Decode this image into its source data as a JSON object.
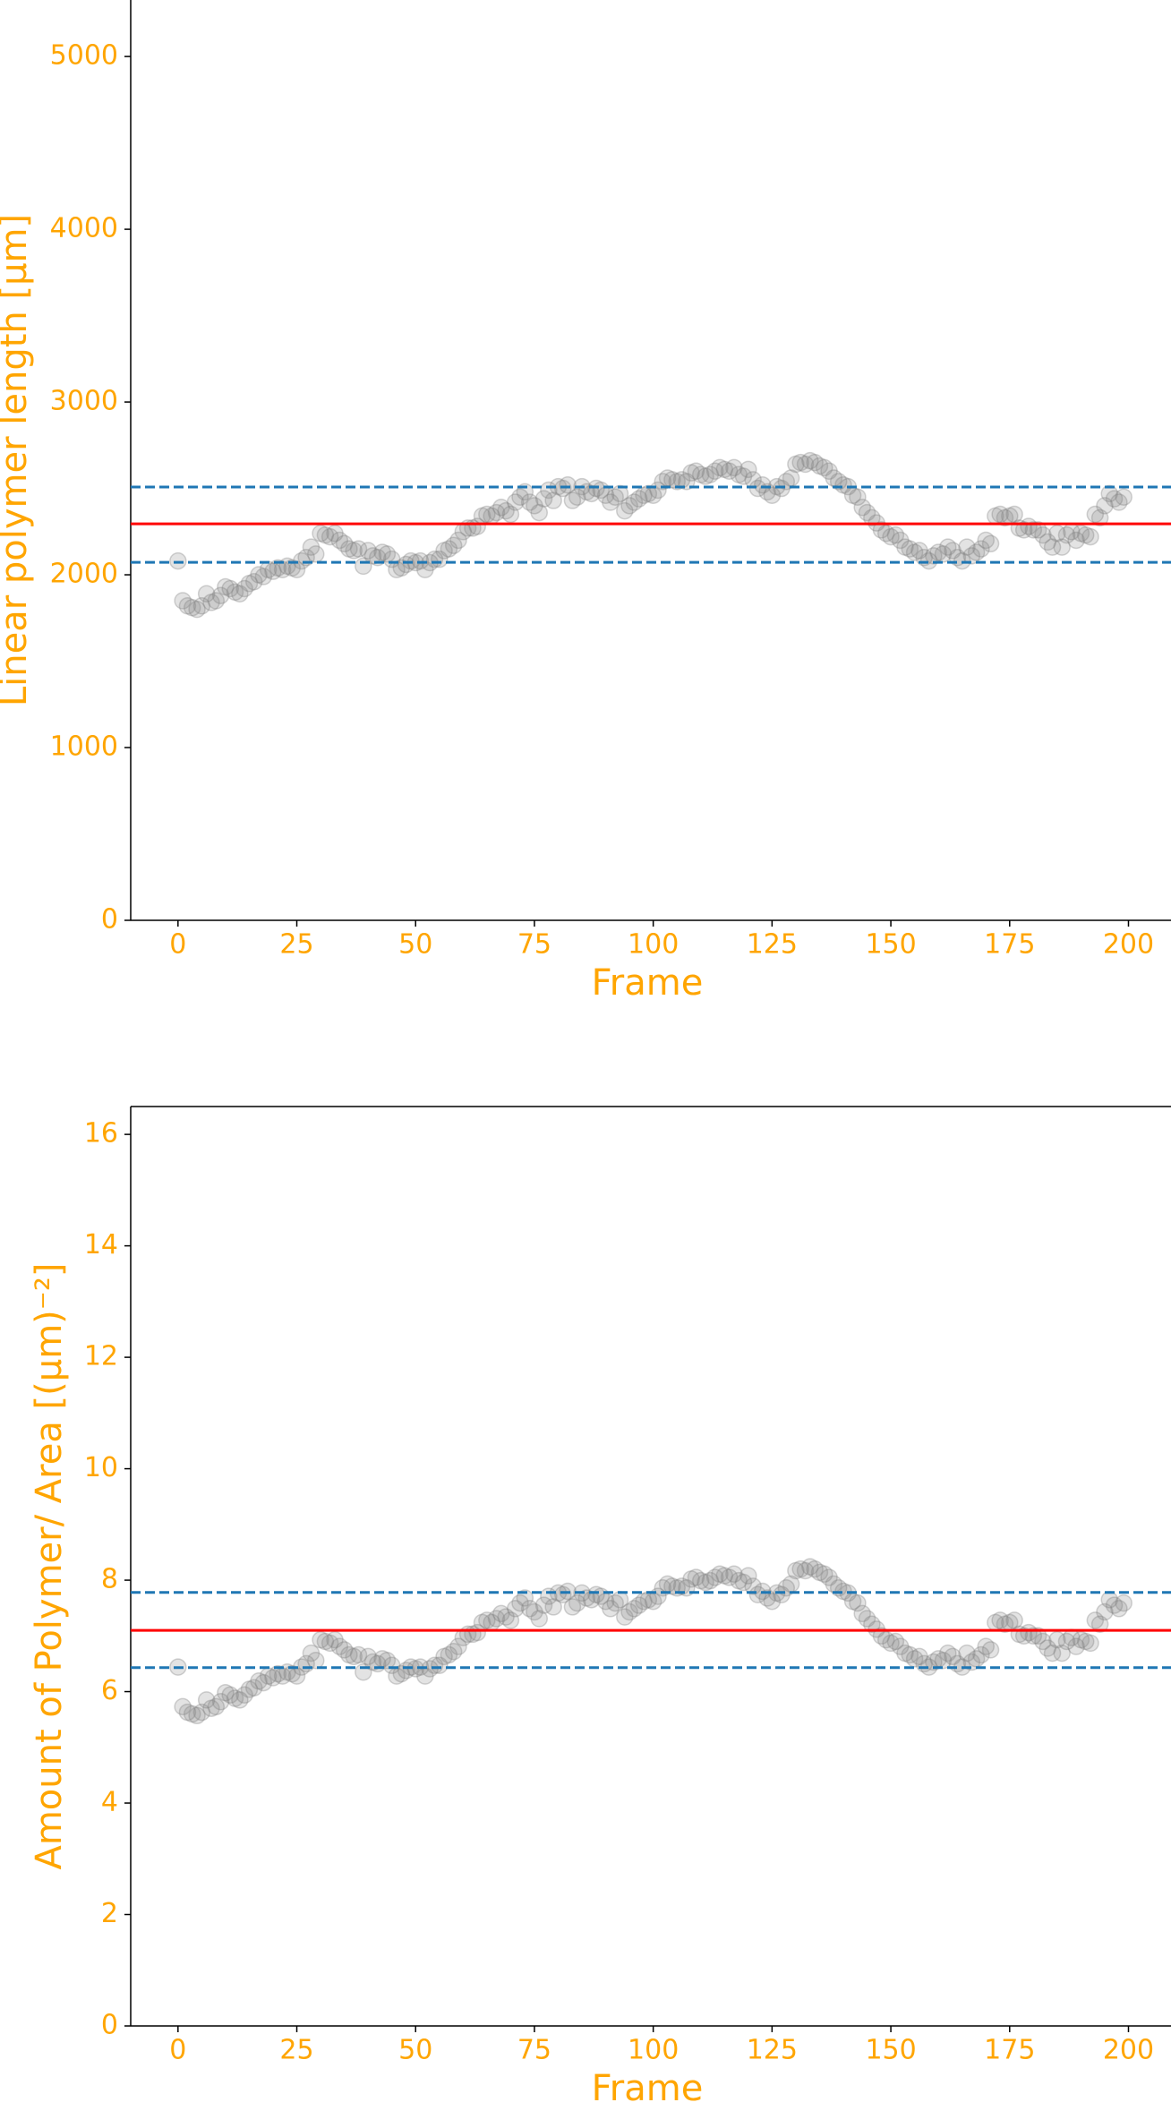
{
  "chart_data": [
    {
      "type": "scatter",
      "x_label": "Frame",
      "y_label": "Linear polymer length [μm]",
      "marker_color": "#808080",
      "label_color": "#ffa500",
      "xlim": [
        -9.95,
        208.95
      ],
      "ylim": [
        0,
        5327
      ],
      "xticks": [
        0,
        25,
        50,
        75,
        100,
        125,
        150,
        175,
        200
      ],
      "yticks": [
        0,
        1000,
        2000,
        3000,
        4000,
        5000
      ],
      "hlines": [
        {
          "value": 2295,
          "color": "#ff0000",
          "style": "solid"
        },
        {
          "value": 2508,
          "color": "#1f77b4",
          "style": "dashed"
        },
        {
          "value": 2072,
          "color": "#1f77b4",
          "style": "dashed"
        }
      ],
      "x": [
        0,
        1,
        2,
        3,
        4,
        5,
        6,
        7,
        8,
        9,
        10,
        11,
        12,
        13,
        14,
        15,
        16,
        17,
        18,
        19,
        20,
        21,
        22,
        23,
        24,
        25,
        26,
        27,
        28,
        29,
        30,
        31,
        32,
        33,
        34,
        35,
        36,
        37,
        38,
        39,
        40,
        41,
        42,
        43,
        44,
        45,
        46,
        47,
        48,
        49,
        50,
        51,
        52,
        53,
        54,
        55,
        56,
        57,
        58,
        59,
        60,
        61,
        62,
        63,
        64,
        65,
        66,
        67,
        68,
        69,
        70,
        71,
        72,
        73,
        74,
        75,
        76,
        77,
        78,
        79,
        80,
        81,
        82,
        83,
        84,
        85,
        86,
        87,
        88,
        89,
        90,
        91,
        92,
        93,
        94,
        95,
        96,
        97,
        98,
        99,
        100,
        101,
        102,
        103,
        104,
        105,
        106,
        107,
        108,
        109,
        110,
        111,
        112,
        113,
        114,
        115,
        116,
        117,
        118,
        119,
        120,
        121,
        122,
        123,
        124,
        125,
        126,
        127,
        128,
        129,
        130,
        131,
        132,
        133,
        134,
        135,
        136,
        137,
        138,
        139,
        140,
        141,
        142,
        143,
        144,
        145,
        146,
        147,
        148,
        149,
        150,
        151,
        152,
        153,
        154,
        155,
        156,
        157,
        158,
        159,
        160,
        161,
        162,
        163,
        164,
        165,
        166,
        167,
        168,
        169,
        170,
        171,
        172,
        173,
        174,
        175,
        176,
        177,
        178,
        179,
        180,
        181,
        182,
        183,
        184,
        185,
        186,
        187,
        188,
        189,
        190,
        191,
        192,
        193,
        194,
        195,
        196,
        197,
        198,
        199
      ],
      "values": [
        2080,
        1850,
        1820,
        1810,
        1800,
        1820,
        1890,
        1840,
        1850,
        1880,
        1930,
        1920,
        1900,
        1890,
        1920,
        1950,
        1960,
        2000,
        1990,
        2030,
        2020,
        2040,
        2030,
        2050,
        2040,
        2030,
        2080,
        2100,
        2160,
        2120,
        2240,
        2230,
        2220,
        2240,
        2200,
        2180,
        2150,
        2140,
        2150,
        2050,
        2140,
        2110,
        2100,
        2130,
        2120,
        2090,
        2030,
        2040,
        2060,
        2080,
        2070,
        2080,
        2030,
        2070,
        2090,
        2090,
        2140,
        2150,
        2170,
        2200,
        2250,
        2270,
        2270,
        2280,
        2340,
        2350,
        2340,
        2360,
        2390,
        2370,
        2350,
        2420,
        2450,
        2480,
        2420,
        2400,
        2360,
        2440,
        2490,
        2430,
        2510,
        2500,
        2520,
        2430,
        2450,
        2510,
        2480,
        2470,
        2500,
        2490,
        2460,
        2420,
        2450,
        2470,
        2370,
        2400,
        2420,
        2440,
        2460,
        2470,
        2460,
        2490,
        2540,
        2560,
        2550,
        2540,
        2550,
        2540,
        2590,
        2600,
        2580,
        2570,
        2580,
        2600,
        2620,
        2610,
        2600,
        2620,
        2580,
        2570,
        2610,
        2550,
        2500,
        2520,
        2480,
        2460,
        2510,
        2500,
        2540,
        2560,
        2640,
        2650,
        2640,
        2660,
        2650,
        2630,
        2620,
        2600,
        2560,
        2540,
        2520,
        2510,
        2460,
        2450,
        2390,
        2360,
        2330,
        2300,
        2260,
        2240,
        2220,
        2230,
        2200,
        2160,
        2150,
        2130,
        2140,
        2100,
        2080,
        2110,
        2130,
        2120,
        2160,
        2140,
        2100,
        2080,
        2160,
        2110,
        2130,
        2150,
        2200,
        2180,
        2340,
        2350,
        2330,
        2340,
        2350,
        2270,
        2260,
        2280,
        2260,
        2260,
        2230,
        2190,
        2160,
        2240,
        2160,
        2230,
        2250,
        2200,
        2240,
        2230,
        2220,
        2350,
        2330,
        2400,
        2470,
        2440,
        2420,
        2450
      ]
    },
    {
      "type": "scatter",
      "x_label": "Frame",
      "y_label": "Amount of Polymer/ Area [(μm)⁻²]",
      "marker_color": "#808080",
      "label_color": "#ffa500",
      "xlim": [
        -9.95,
        208.95
      ],
      "ylim": [
        0,
        16.5
      ],
      "xticks": [
        0,
        25,
        50,
        75,
        100,
        125,
        150,
        175,
        200
      ],
      "yticks": [
        0,
        2,
        4,
        6,
        8,
        10,
        12,
        14,
        16
      ],
      "hlines": [
        {
          "value": 7.1,
          "color": "#ff0000",
          "style": "solid"
        },
        {
          "value": 7.78,
          "color": "#1f77b4",
          "style": "dashed"
        },
        {
          "value": 6.43,
          "color": "#1f77b4",
          "style": "dashed"
        }
      ],
      "x": [
        0,
        1,
        2,
        3,
        4,
        5,
        6,
        7,
        8,
        9,
        10,
        11,
        12,
        13,
        14,
        15,
        16,
        17,
        18,
        19,
        20,
        21,
        22,
        23,
        24,
        25,
        26,
        27,
        28,
        29,
        30,
        31,
        32,
        33,
        34,
        35,
        36,
        37,
        38,
        39,
        40,
        41,
        42,
        43,
        44,
        45,
        46,
        47,
        48,
        49,
        50,
        51,
        52,
        53,
        54,
        55,
        56,
        57,
        58,
        59,
        60,
        61,
        62,
        63,
        64,
        65,
        66,
        67,
        68,
        69,
        70,
        71,
        72,
        73,
        74,
        75,
        76,
        77,
        78,
        79,
        80,
        81,
        82,
        83,
        84,
        85,
        86,
        87,
        88,
        89,
        90,
        91,
        92,
        93,
        94,
        95,
        96,
        97,
        98,
        99,
        100,
        101,
        102,
        103,
        104,
        105,
        106,
        107,
        108,
        109,
        110,
        111,
        112,
        113,
        114,
        115,
        116,
        117,
        118,
        119,
        120,
        121,
        122,
        123,
        124,
        125,
        126,
        127,
        128,
        129,
        130,
        131,
        132,
        133,
        134,
        135,
        136,
        137,
        138,
        139,
        140,
        141,
        142,
        143,
        144,
        145,
        146,
        147,
        148,
        149,
        150,
        151,
        152,
        153,
        154,
        155,
        156,
        157,
        158,
        159,
        160,
        161,
        162,
        163,
        164,
        165,
        166,
        167,
        168,
        169,
        170,
        171,
        172,
        173,
        174,
        175,
        176,
        177,
        178,
        179,
        180,
        181,
        182,
        183,
        184,
        185,
        186,
        187,
        188,
        189,
        190,
        191,
        192,
        193,
        194,
        195,
        196,
        197,
        198,
        199
      ],
      "values": [
        6.44,
        5.73,
        5.63,
        5.6,
        5.57,
        5.63,
        5.85,
        5.7,
        5.73,
        5.82,
        5.98,
        5.94,
        5.88,
        5.85,
        5.94,
        6.04,
        6.07,
        6.19,
        6.16,
        6.28,
        6.25,
        6.32,
        6.28,
        6.35,
        6.32,
        6.28,
        6.44,
        6.5,
        6.69,
        6.56,
        6.93,
        6.9,
        6.87,
        6.93,
        6.81,
        6.75,
        6.66,
        6.63,
        6.66,
        6.35,
        6.63,
        6.53,
        6.5,
        6.59,
        6.56,
        6.47,
        6.28,
        6.32,
        6.38,
        6.44,
        6.41,
        6.44,
        6.28,
        6.41,
        6.47,
        6.47,
        6.63,
        6.66,
        6.72,
        6.81,
        6.97,
        7.03,
        7.03,
        7.06,
        7.24,
        7.28,
        7.24,
        7.31,
        7.4,
        7.34,
        7.28,
        7.49,
        7.59,
        7.68,
        7.49,
        7.43,
        7.31,
        7.55,
        7.71,
        7.52,
        7.77,
        7.74,
        7.8,
        7.52,
        7.59,
        7.77,
        7.68,
        7.65,
        7.74,
        7.71,
        7.62,
        7.49,
        7.59,
        7.65,
        7.34,
        7.43,
        7.49,
        7.55,
        7.62,
        7.65,
        7.62,
        7.71,
        7.86,
        7.93,
        7.89,
        7.86,
        7.89,
        7.86,
        8.02,
        8.05,
        7.99,
        7.96,
        7.99,
        8.05,
        8.11,
        8.08,
        8.05,
        8.11,
        7.99,
        7.96,
        8.08,
        7.89,
        7.74,
        7.8,
        7.68,
        7.62,
        7.77,
        7.74,
        7.86,
        7.93,
        8.17,
        8.2,
        8.17,
        8.24,
        8.2,
        8.14,
        8.11,
        8.05,
        7.93,
        7.86,
        7.8,
        7.77,
        7.62,
        7.59,
        7.4,
        7.31,
        7.21,
        7.12,
        7.0,
        6.93,
        6.87,
        6.9,
        6.81,
        6.69,
        6.66,
        6.59,
        6.63,
        6.5,
        6.44,
        6.53,
        6.59,
        6.56,
        6.69,
        6.63,
        6.5,
        6.44,
        6.69,
        6.53,
        6.59,
        6.66,
        6.81,
        6.75,
        7.24,
        7.28,
        7.21,
        7.24,
        7.28,
        7.03,
        7.0,
        7.06,
        7.0,
        7.0,
        6.9,
        6.78,
        6.69,
        6.93,
        6.69,
        6.9,
        6.97,
        6.81,
        6.93,
        6.9,
        6.87,
        7.28,
        7.21,
        7.43,
        7.65,
        7.55,
        7.49,
        7.59
      ]
    }
  ]
}
